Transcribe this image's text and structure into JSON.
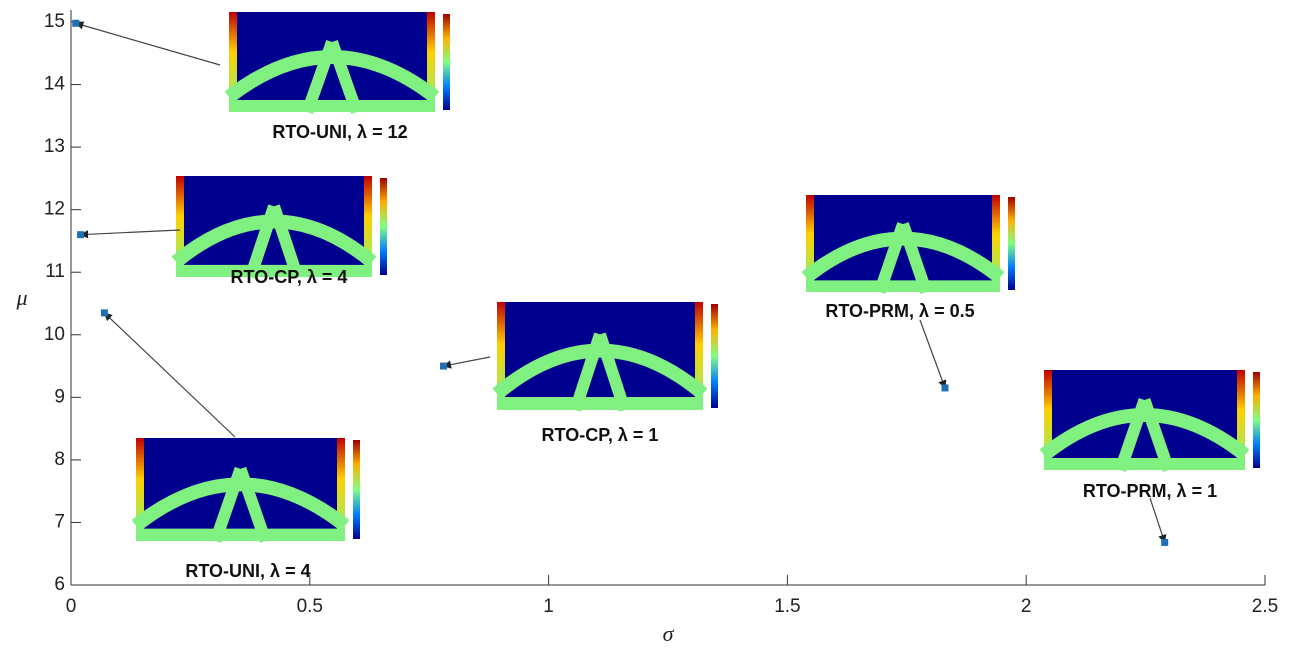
{
  "chart_data": {
    "type": "scatter",
    "x_label": "σ",
    "y_label": "μ",
    "x": [
      0.01,
      0.02,
      0.07,
      0.78,
      1.83,
      2.29
    ],
    "values": [
      14.98,
      11.6,
      10.35,
      9.5,
      9.15,
      6.68
    ],
    "color": "#1f6fb4",
    "annotations": [
      "RTO-UNI, λ = 12",
      "RTO-CP, λ = 4",
      "RTO-UNI, λ = 4",
      "RTO-CP, λ = 1",
      "RTO-PRM, λ = 0.5",
      "RTO-PRM, λ = 1"
    ],
    "xlim": [
      0,
      2.5
    ],
    "xticks": [
      0,
      0.5,
      1,
      1.5,
      2,
      2.5
    ],
    "ylim": [
      6,
      15
    ],
    "yticks": [
      6,
      7,
      8,
      9,
      10,
      11,
      12,
      13,
      14,
      15
    ]
  }
}
